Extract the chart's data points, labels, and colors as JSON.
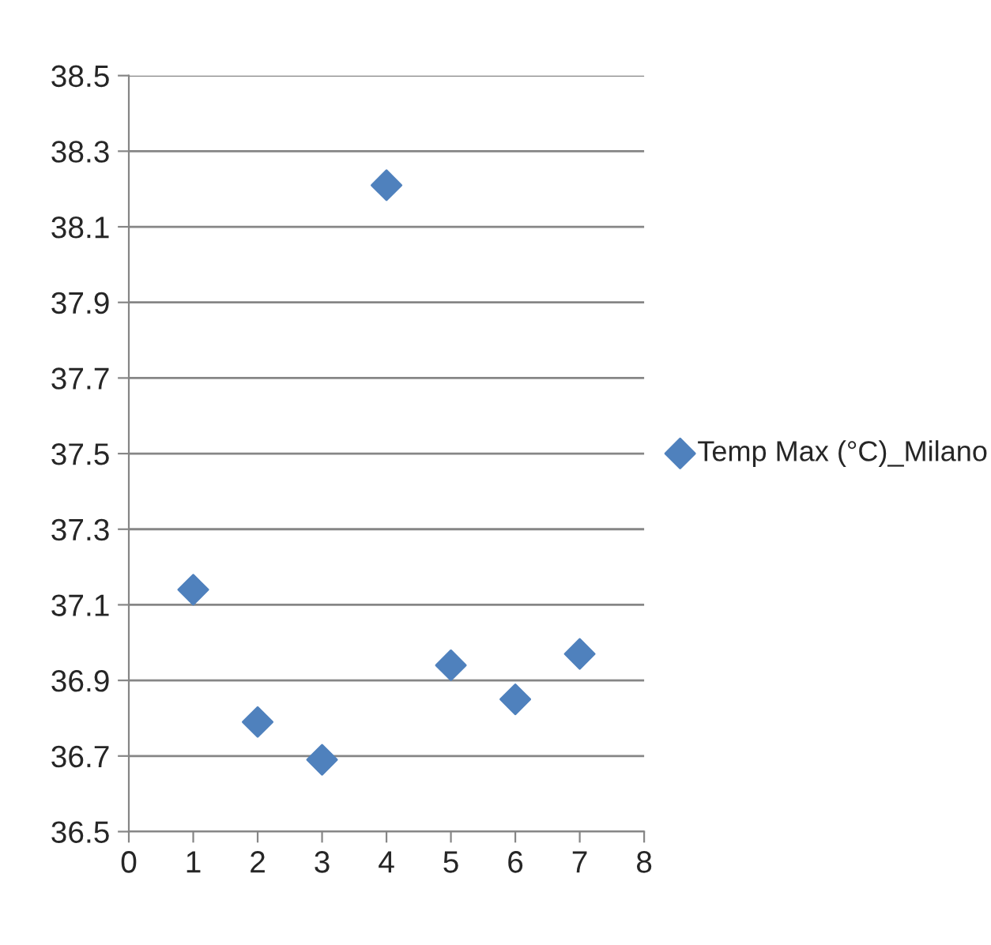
{
  "chart_data": {
    "type": "scatter",
    "x": [
      1,
      2,
      3,
      4,
      5,
      6,
      7
    ],
    "series": [
      {
        "name": "Temp Max (°C)_Milano",
        "color": "#4f81bd",
        "values": [
          37.14,
          36.79,
          36.69,
          38.21,
          36.94,
          36.85,
          36.97
        ]
      }
    ],
    "xlim": [
      0,
      8
    ],
    "xticks": [
      0,
      1,
      2,
      3,
      4,
      5,
      6,
      7,
      8
    ],
    "ylim": [
      36.5,
      38.5
    ],
    "yticks": [
      36.5,
      36.7,
      36.9,
      37.1,
      37.3,
      37.5,
      37.7,
      37.9,
      38.1,
      38.3,
      38.5
    ],
    "grid": "y",
    "legend": "right",
    "marker": "diamond"
  }
}
